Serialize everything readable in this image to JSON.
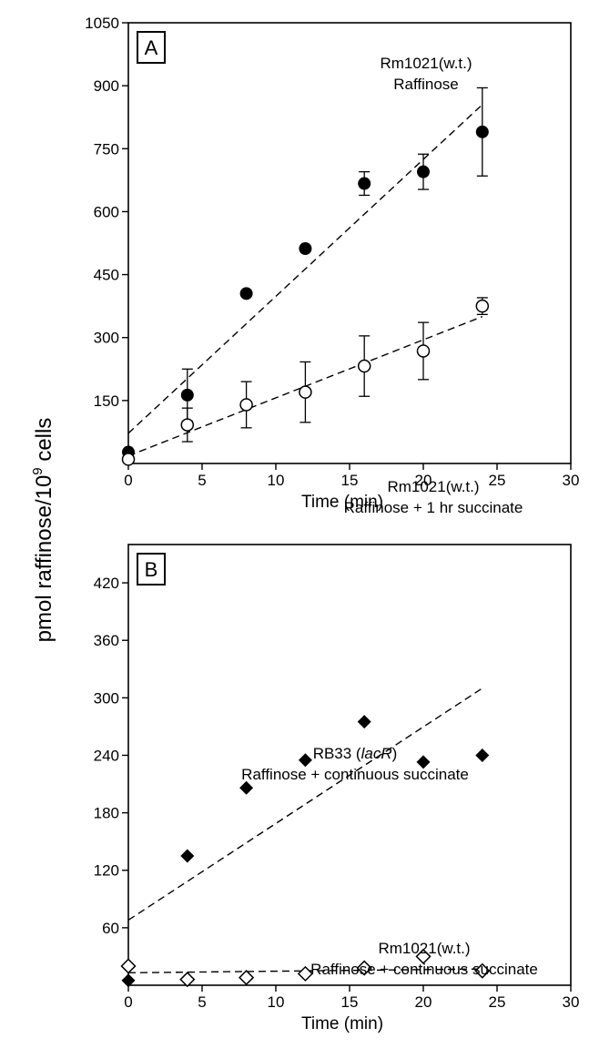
{
  "figure": {
    "ylabel_main": "pmol raffinose/10",
    "ylabel_sup": "9",
    "ylabel_tail": " cells"
  },
  "chart_data": [
    {
      "type": "scatter",
      "panel_label": "A",
      "xlabel": "Time (min)",
      "xlim": [
        0,
        30
      ],
      "ylim": [
        0,
        1050
      ],
      "xticks": [
        0,
        5,
        10,
        15,
        20,
        25,
        30
      ],
      "yticks": [
        150,
        300,
        450,
        600,
        750,
        900,
        1050
      ],
      "grid": false,
      "series": [
        {
          "label_line1": "Rm1021(w.t.)",
          "label_line2": "Raffinose",
          "marker": "filled-circle",
          "x": [
            0,
            4,
            8,
            12,
            16,
            20,
            24
          ],
          "y": [
            27,
            163,
            405,
            512,
            667,
            695,
            790
          ],
          "yerr": [
            0,
            62,
            0,
            0,
            28,
            42,
            105
          ],
          "fit_line": {
            "x": [
              0,
              24
            ],
            "y": [
              72,
              855
            ]
          }
        },
        {
          "label_line1": "Rm1021(w.t.)",
          "label_line2": "Raffinose + 1 hr succinate",
          "marker": "open-circle",
          "x": [
            0,
            4,
            8,
            12,
            16,
            20,
            24
          ],
          "y": [
            10,
            92,
            140,
            170,
            232,
            268,
            375
          ],
          "yerr": [
            0,
            40,
            55,
            72,
            72,
            68,
            20
          ],
          "fit_line": {
            "x": [
              0,
              24
            ],
            "y": [
              18,
              350
            ]
          }
        }
      ]
    },
    {
      "type": "scatter",
      "panel_label": "B",
      "xlabel": "Time (min)",
      "xlim": [
        0,
        30
      ],
      "ylim": [
        0,
        460
      ],
      "xticks": [
        0,
        5,
        10,
        15,
        20,
        25,
        30
      ],
      "yticks": [
        60,
        120,
        180,
        240,
        300,
        360,
        420
      ],
      "grid": false,
      "series": [
        {
          "label_line1": "RB33 (",
          "label_italic": "lacR",
          "label_after": ")",
          "label_line2": "Raffinose + continuous succinate",
          "marker": "filled-diamond",
          "x": [
            0,
            4,
            8,
            12,
            16,
            20,
            24
          ],
          "y": [
            5,
            135,
            206,
            235,
            275,
            233,
            240
          ],
          "fit_line": {
            "x": [
              0,
              24
            ],
            "y": [
              68,
              310
            ]
          }
        },
        {
          "label_line1": "Rm1021(w.t.)",
          "label_line2": "Raffinose + continuous succinate",
          "marker": "open-diamond",
          "x": [
            0,
            4,
            8,
            12,
            16,
            20,
            24
          ],
          "y": [
            20,
            6,
            8,
            12,
            18,
            30,
            15
          ],
          "fit_line": {
            "x": [
              0,
              24
            ],
            "y": [
              13,
              17
            ]
          }
        }
      ]
    }
  ]
}
